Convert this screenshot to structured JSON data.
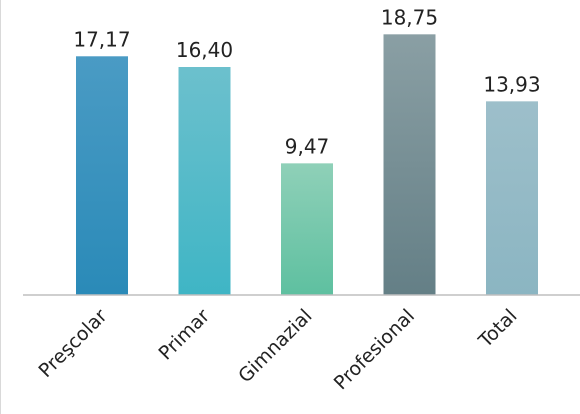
{
  "chart_data": {
    "type": "bar",
    "title": "",
    "xlabel": "",
    "ylabel": "",
    "categories": [
      "Preşcolar",
      "Primar",
      "Gimnazial",
      "Profesional",
      "Total"
    ],
    "values": [
      17.17,
      16.4,
      9.47,
      18.75,
      13.93
    ],
    "value_labels": [
      "17,17",
      "16,40",
      "9,47",
      "18,75",
      "13,93"
    ],
    "ylim": [
      0,
      20.5
    ],
    "grid": false,
    "legend": "none",
    "colors": {
      "bars": [
        [
          "#4a9bc4",
          "#2a8ab8"
        ],
        [
          "#6cc0cd",
          "#3fb5c5"
        ],
        [
          "#8fd0b8",
          "#5ec0a0"
        ],
        [
          "#8a9fa4",
          "#647f86"
        ],
        [
          "#9dbfca",
          "#8bb5c2"
        ]
      ],
      "axis": "#bfbfbf",
      "text": "#222222"
    }
  }
}
